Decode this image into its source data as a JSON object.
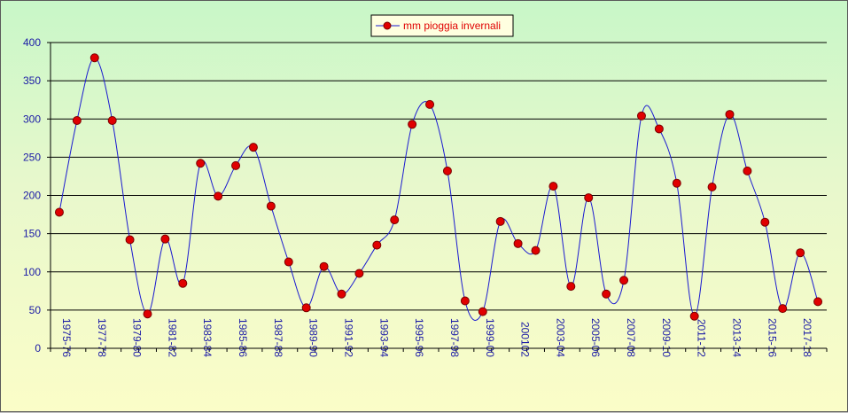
{
  "chart_data": {
    "type": "line",
    "title": "",
    "xlabel": "",
    "ylabel": "",
    "ylim": [
      0,
      400
    ],
    "yticks": [
      0,
      50,
      100,
      150,
      200,
      250,
      300,
      350,
      400
    ],
    "grid": true,
    "legend_placement": "top-center",
    "colors": {
      "line": "#1a1ad0",
      "marker_fill": "#e00000",
      "marker_edge": "#7a0000",
      "grid": "#000000",
      "axis_text": "#1a1aa6",
      "legend_text": "#e00000"
    },
    "x": [
      "1975-76",
      "1976-77",
      "1977-78",
      "1978-79",
      "1979-80",
      "1980-81",
      "1981-82",
      "1982-83",
      "1983-84",
      "1984-85",
      "1985-86",
      "1986-87",
      "1987-88",
      "1988-89",
      "1989-90",
      "1990-91",
      "1991-92",
      "1992-93",
      "1993-94",
      "1994-95",
      "1995-96",
      "1996-97",
      "1997-98",
      "1998-99",
      "1999-00",
      "2000-01",
      "200102",
      "2002-03",
      "2003-04",
      "2004-05",
      "2005-06",
      "2006-07",
      "2007-08",
      "2008-09",
      "2009-10",
      "2010-11",
      "2011-12",
      "2012-13",
      "2013-14",
      "2014-15",
      "2015-16",
      "2016-17",
      "2017-18",
      "2018-19"
    ],
    "xtick_labels": [
      "1975-76",
      "1977-78",
      "1979-80",
      "1981-82",
      "1983-84",
      "1985-86",
      "1987-88",
      "1989-90",
      "1991-92",
      "1993-94",
      "1995-96",
      "1997-98",
      "1999-00",
      "200102",
      "2003-04",
      "2005-06",
      "2007-08",
      "2009-10",
      "2011-12",
      "2013-14",
      "2015-16",
      "2017-18"
    ],
    "series": [
      {
        "name": "mm pioggia invernali",
        "values": [
          178,
          298,
          380,
          298,
          142,
          45,
          143,
          85,
          242,
          199,
          239,
          263,
          186,
          113,
          53,
          107,
          71,
          98,
          135,
          168,
          293,
          319,
          232,
          62,
          48,
          166,
          137,
          128,
          212,
          81,
          197,
          71,
          89,
          304,
          287,
          216,
          42,
          211,
          306,
          232,
          165,
          52,
          125,
          61
        ]
      }
    ]
  }
}
